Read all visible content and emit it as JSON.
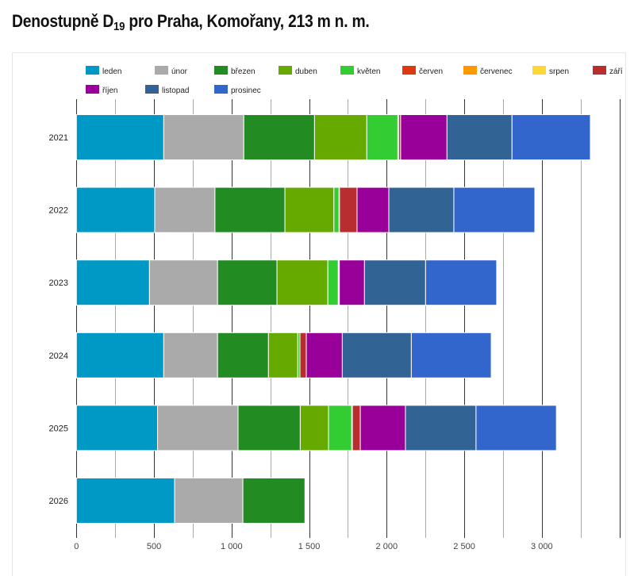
{
  "title": {
    "prefix": "Denostupně D",
    "subscript": "19",
    "suffix": " pro Praha, Komořany, 213 m n. m."
  },
  "chart_data": {
    "type": "bar",
    "orientation": "horizontal",
    "stacked": true,
    "title": "Denostupně D19 pro Praha, Komořany, 213 m n. m.",
    "xlabel": "",
    "ylabel": "",
    "xlim": [
      0,
      3500
    ],
    "x_ticks": [
      0,
      500,
      1000,
      1500,
      2000,
      2500,
      3000
    ],
    "x_tick_labels": [
      "0",
      "500",
      "1 000",
      "1 500",
      "2 000",
      "2 500",
      "3 000"
    ],
    "minor_gridlines_every": 250,
    "grid": true,
    "legend_position": "top",
    "categories": [
      "2021",
      "2022",
      "2023",
      "2024",
      "2025",
      "2026"
    ],
    "series": [
      {
        "name": "leden",
        "color": "#0099c6",
        "values": [
          563,
          505,
          471,
          563,
          523,
          633
        ]
      },
      {
        "name": "únor",
        "color": "#aaaaaa",
        "values": [
          516,
          388,
          439,
          347,
          519,
          440
        ]
      },
      {
        "name": "březen",
        "color": "#228b22",
        "values": [
          456,
          451,
          383,
          328,
          401,
          400
        ]
      },
      {
        "name": "duben",
        "color": "#66aa00",
        "values": [
          337,
          316,
          328,
          189,
          182,
          0
        ]
      },
      {
        "name": "květen",
        "color": "#33cc33",
        "values": [
          200,
          33,
          67,
          14,
          150,
          0
        ]
      },
      {
        "name": "červen",
        "color": "#dc3912",
        "values": [
          5,
          3,
          3,
          0,
          4,
          0
        ]
      },
      {
        "name": "červenec",
        "color": "#ff9900",
        "values": [
          0,
          0,
          0,
          0,
          0,
          0
        ]
      },
      {
        "name": "srpen",
        "color": "#fdd835",
        "values": [
          0,
          0,
          0,
          0,
          0,
          0
        ]
      },
      {
        "name": "září",
        "color": "#b82e2e",
        "values": [
          13,
          113,
          4,
          41,
          51,
          0
        ]
      },
      {
        "name": "říjen",
        "color": "#990099",
        "values": [
          299,
          205,
          162,
          232,
          291,
          0
        ]
      },
      {
        "name": "listopad",
        "color": "#316395",
        "values": [
          419,
          419,
          394,
          445,
          455,
          0
        ]
      },
      {
        "name": "prosinec",
        "color": "#3366cc",
        "values": [
          505,
          522,
          458,
          515,
          518,
          0
        ]
      }
    ]
  }
}
